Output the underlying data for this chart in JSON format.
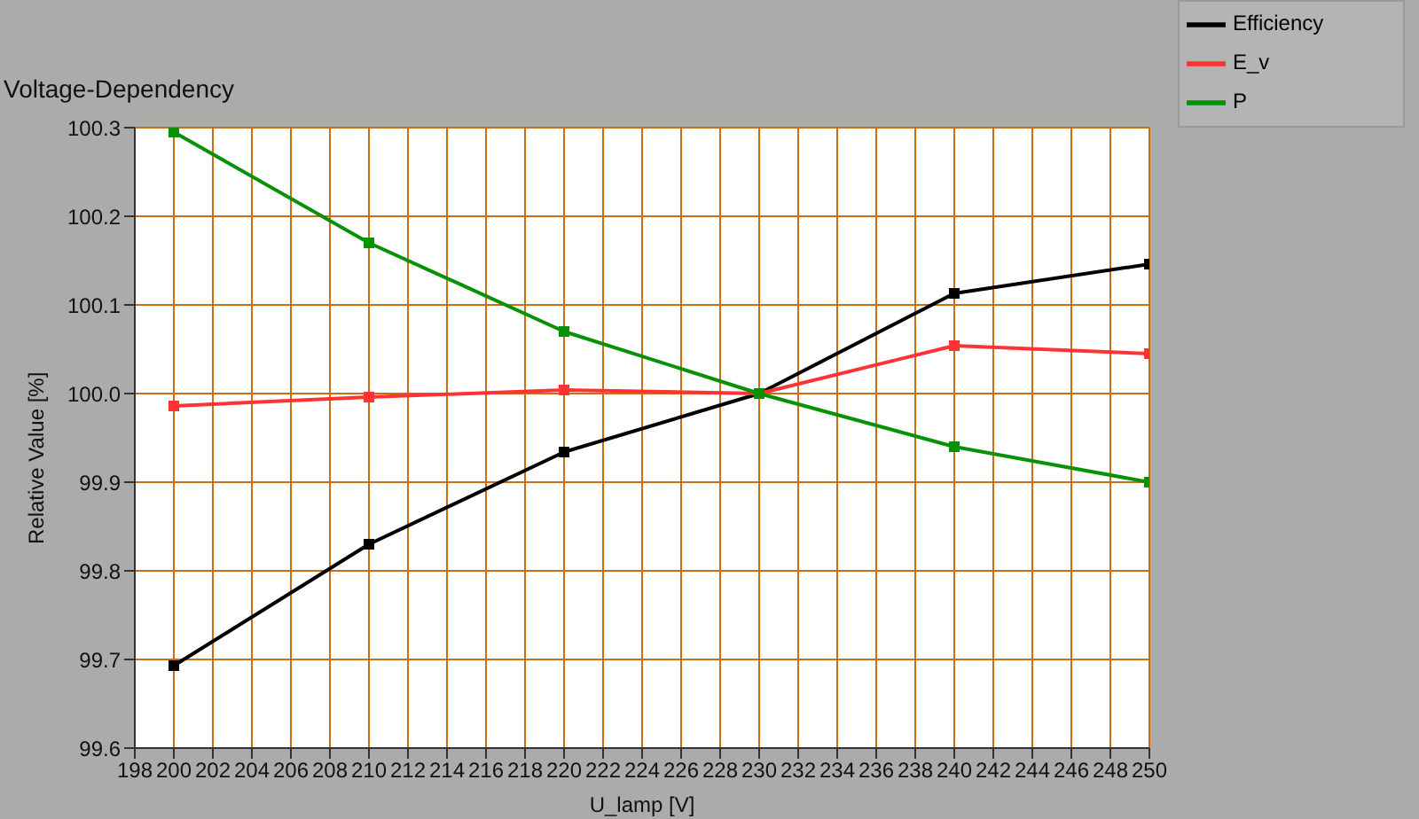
{
  "chart_data": {
    "type": "line",
    "title": "Voltage-Dependency",
    "xlabel": "U_lamp [V]",
    "ylabel": "Relative Value [%]",
    "x": [
      200,
      210,
      220,
      230,
      240,
      250
    ],
    "series": [
      {
        "name": "Efficiency",
        "color": "#000000",
        "values": [
          99.693,
          99.83,
          99.934,
          100.0,
          100.113,
          100.146
        ]
      },
      {
        "name": "E_v",
        "color": "#ff3333",
        "values": [
          99.986,
          99.996,
          100.004,
          100.0,
          100.054,
          100.045
        ]
      },
      {
        "name": "P",
        "color": "#079107",
        "values": [
          100.295,
          100.17,
          100.07,
          100.0,
          99.94,
          99.9
        ]
      }
    ],
    "xlim": [
      198,
      250
    ],
    "xticks": [
      198,
      200,
      202,
      204,
      206,
      208,
      210,
      212,
      214,
      216,
      218,
      220,
      222,
      224,
      226,
      228,
      230,
      232,
      234,
      236,
      238,
      240,
      242,
      244,
      246,
      248,
      250
    ],
    "ylim": [
      99.6,
      100.3
    ],
    "yticks": [
      99.6,
      99.7,
      99.8,
      99.9,
      {
        "value": 100,
        "label": "100.0"
      },
      100.1,
      100.2,
      100.3
    ],
    "grid": true,
    "legend": "top right",
    "marker": "square",
    "line_style": "solid"
  }
}
